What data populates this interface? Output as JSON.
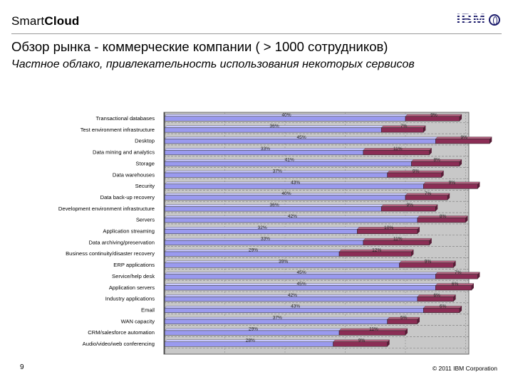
{
  "header": {
    "brand_part1": "Smart",
    "brand_part2": "Cloud",
    "logo_text": "IBM",
    "title": "Обзор рынка - коммерческие компании ( > 1000 сотрудников)",
    "subtitle": "Частное облако, привлекательность использования некоторых сервисов"
  },
  "footer": {
    "page_number": "9",
    "copyright": "© 2011 IBM Corporation"
  },
  "colors": {
    "series1": "#9a9aef",
    "series2": "#8b2d55",
    "plot_background": "#c8c8c8",
    "grid": "#8a8a8a"
  },
  "chart_data": {
    "type": "bar",
    "orientation": "horizontal",
    "stacked": true,
    "xlim": [
      0,
      70
    ],
    "grid": true,
    "legend": "none",
    "categories": [
      "Transactional databases",
      "Test environment infrastructure",
      "Desktop",
      "Data mining and analytics",
      "Storage",
      "Data warehouses",
      "Security",
      "Data back-up recovery",
      "Development environment infrastructure",
      "Servers",
      "Application streaming",
      "Data archiving/preservation",
      "Business continuity/disaster recovery",
      "ERP applications",
      "Service/help desk",
      "Application servers",
      "Industry applications",
      "Email",
      "WAN capacity",
      "CRM/salesforce automation",
      "Audio/video/web conferencing"
    ],
    "series": [
      {
        "values": [
          40,
          36,
          45,
          33,
          41,
          37,
          43,
          40,
          36,
          42,
          32,
          33,
          29,
          39,
          45,
          45,
          42,
          43,
          37,
          29,
          28
        ],
        "labels": [
          "40%",
          "36%",
          "45%",
          "33%",
          "41%",
          "37%",
          "43%",
          "40%",
          "36%",
          "42%",
          "32%",
          "33%",
          "29%",
          "39%",
          "45%",
          "45%",
          "42%",
          "43%",
          "37%",
          "29%",
          "28%"
        ]
      },
      {
        "values": [
          9,
          7,
          9,
          11,
          8,
          9,
          9,
          7,
          9,
          8,
          10,
          11,
          12,
          9,
          7,
          6,
          6,
          6,
          5,
          11,
          9
        ],
        "labels": [
          "9%",
          "7%",
          "9%",
          "11%",
          "8%",
          "9%",
          "9%",
          "7%",
          "9%",
          "8%",
          "10%",
          "11%",
          "12%",
          "9%",
          "7%",
          "6%",
          "6%",
          "6%",
          "5%",
          "11%",
          "9%"
        ]
      }
    ]
  }
}
